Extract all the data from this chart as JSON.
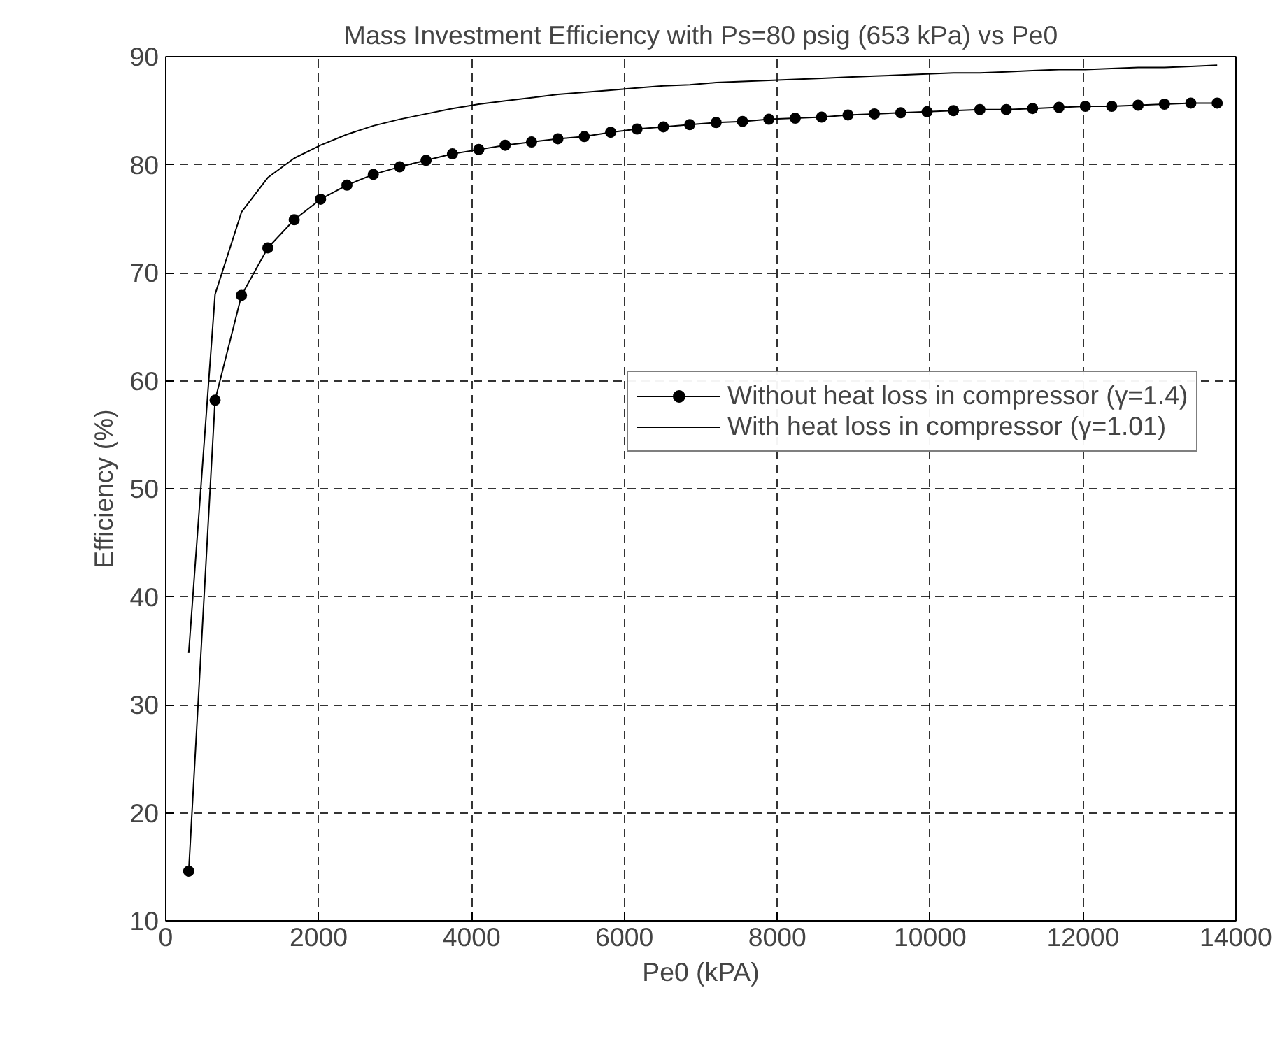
{
  "chart_data": {
    "type": "line",
    "title": "Mass Investment Efficiency with Ps=80 psig (653 kPa) vs Pe0",
    "xlabel": "Pe0 (kPA)",
    "ylabel": "Efficiency (%)",
    "x": [
      300,
      645,
      990,
      1335,
      1680,
      2025,
      2370,
      2715,
      3060,
      3405,
      3750,
      4095,
      4440,
      4785,
      5130,
      5475,
      5820,
      6165,
      6510,
      6855,
      7200,
      7545,
      7890,
      8235,
      8580,
      8925,
      9270,
      9615,
      9960,
      10305,
      10650,
      10995,
      11340,
      11685,
      12030,
      12375,
      12720,
      13065,
      13410,
      13755
    ],
    "series": [
      {
        "name": "Without heat loss in compressor (γ=1.4)",
        "color": "#000000",
        "marker": "circle",
        "values": [
          14.6,
          58.2,
          67.9,
          72.3,
          74.9,
          76.8,
          78.1,
          79.1,
          79.8,
          80.4,
          81.0,
          81.4,
          81.8,
          82.1,
          82.4,
          82.6,
          83.0,
          83.3,
          83.5,
          83.7,
          83.9,
          84.0,
          84.2,
          84.3,
          84.4,
          84.6,
          84.7,
          84.8,
          84.9,
          85.0,
          85.1,
          85.1,
          85.2,
          85.3,
          85.4,
          85.4,
          85.5,
          85.6,
          85.7,
          85.7
        ]
      },
      {
        "name": "With heat loss in compressor (γ=1.01)",
        "color": "#000000",
        "marker": "none",
        "values": [
          34.8,
          68.0,
          75.6,
          78.8,
          80.6,
          81.8,
          82.8,
          83.6,
          84.2,
          84.7,
          85.2,
          85.6,
          85.9,
          86.2,
          86.5,
          86.7,
          86.9,
          87.1,
          87.3,
          87.4,
          87.6,
          87.7,
          87.8,
          87.9,
          88.0,
          88.1,
          88.2,
          88.3,
          88.4,
          88.5,
          88.5,
          88.6,
          88.7,
          88.8,
          88.8,
          88.9,
          89.0,
          89.0,
          89.1,
          89.2
        ]
      }
    ],
    "xlim": [
      0,
      14000
    ],
    "xticks": [
      0,
      2000,
      4000,
      6000,
      8000,
      10000,
      12000,
      14000
    ],
    "ylim": [
      10,
      90
    ],
    "yticks": [
      10,
      20,
      30,
      40,
      50,
      60,
      70,
      80,
      90
    ],
    "grid": true,
    "legend": "top right",
    "line_style": "solid"
  }
}
